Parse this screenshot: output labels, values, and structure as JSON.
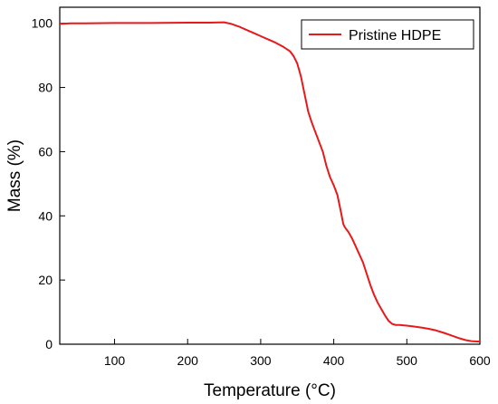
{
  "chart_data": {
    "type": "line",
    "xlabel": "Temperature (°C)",
    "ylabel": "Mass (%)",
    "xlim": [
      25,
      600
    ],
    "ylim": [
      0,
      105
    ],
    "xticks": [
      100,
      200,
      300,
      400,
      500,
      600
    ],
    "xtick_labels": [
      "100",
      "200",
      "300",
      "400",
      "500",
      "600"
    ],
    "yticks": [
      0,
      20,
      40,
      60,
      80,
      100
    ],
    "ytick_labels": [
      "0",
      "20",
      "40",
      "60",
      "80",
      "100"
    ],
    "grid": false,
    "legend_position": "top-right",
    "series": [
      {
        "name": "Pristine HDPE",
        "color": "#e8191a",
        "x": [
          25,
          40,
          60,
          100,
          150,
          200,
          230,
          250,
          260,
          270,
          280,
          290,
          300,
          310,
          320,
          330,
          340,
          345,
          350,
          355,
          360,
          365,
          370,
          375,
          380,
          385,
          390,
          395,
          400,
          405,
          410,
          413,
          415,
          420,
          425,
          430,
          435,
          440,
          445,
          450,
          455,
          460,
          465,
          470,
          475,
          480,
          485,
          490,
          500,
          510,
          520,
          530,
          540,
          550,
          560,
          570,
          580,
          590,
          600
        ],
        "y": [
          99.8,
          100,
          100,
          100.1,
          100.1,
          100.2,
          100.2,
          100.3,
          99.8,
          99,
          98,
          97,
          96,
          95,
          94,
          92.8,
          91.3,
          89.8,
          87.5,
          83.5,
          78,
          72.5,
          69,
          66,
          63,
          60,
          55.5,
          52,
          49.5,
          46.5,
          41,
          37.5,
          36.5,
          35,
          33,
          30.5,
          28,
          25.5,
          22,
          18.5,
          15.5,
          13,
          11,
          9,
          7.3,
          6.3,
          6,
          6,
          5.8,
          5.5,
          5.2,
          4.8,
          4.3,
          3.6,
          2.8,
          2,
          1.3,
          0.9,
          0.8
        ]
      }
    ]
  }
}
